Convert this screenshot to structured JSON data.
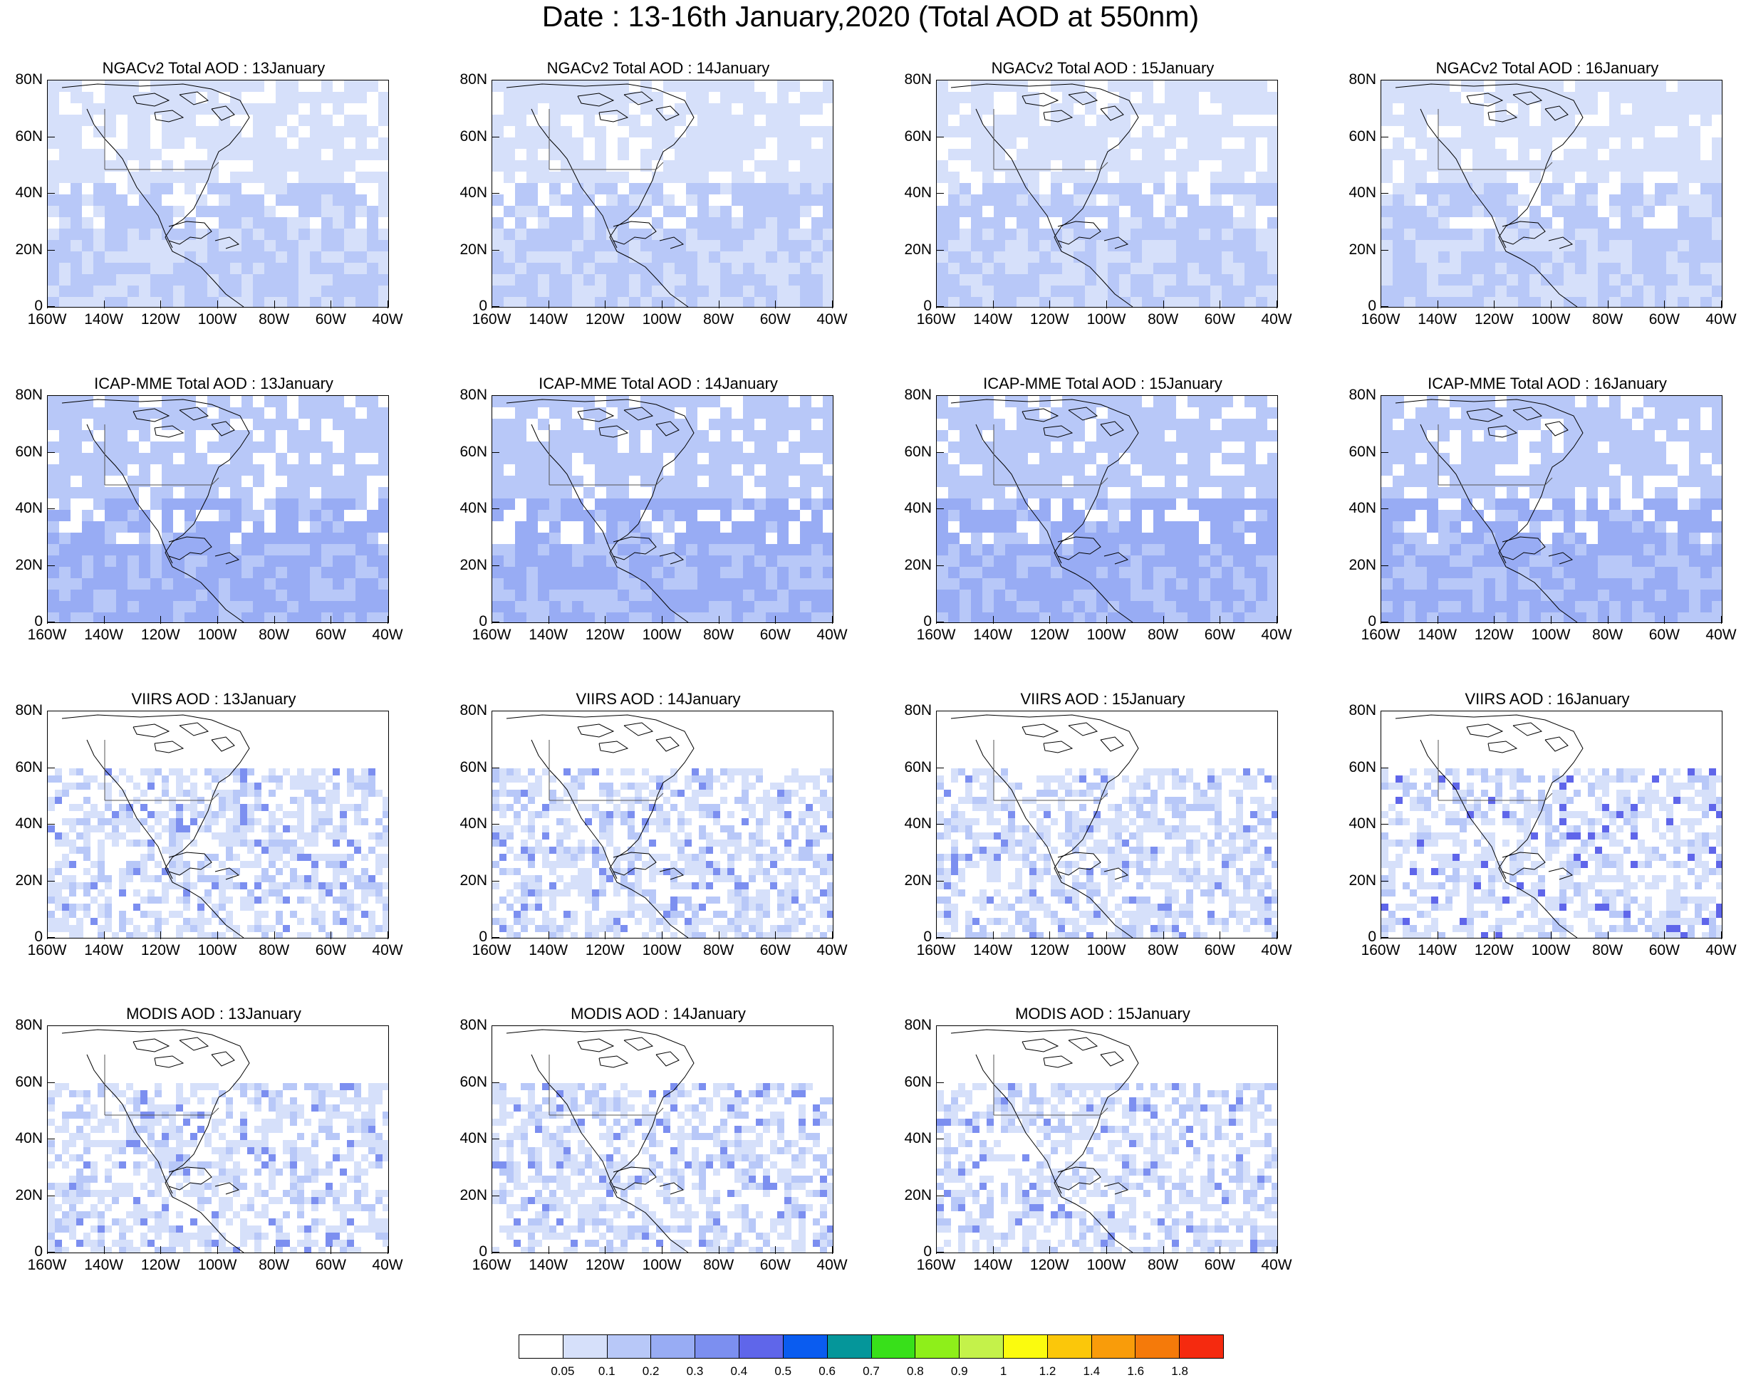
{
  "title": "Date : 13-16th January,2020 (Total AOD at 550nm)",
  "y_ticks": [
    "80N",
    "60N",
    "40N",
    "20N",
    "0"
  ],
  "x_ticks": [
    "160W",
    "140W",
    "120W",
    "100W",
    "80W",
    "60W",
    "40W"
  ],
  "panels": [
    {
      "row": 0,
      "col": 0,
      "title": "NGACv2 Total AOD : 13January",
      "kind": "model",
      "level": 1
    },
    {
      "row": 0,
      "col": 1,
      "title": "NGACv2 Total AOD : 14January",
      "kind": "model",
      "level": 1
    },
    {
      "row": 0,
      "col": 2,
      "title": "NGACv2 Total AOD : 15January",
      "kind": "model",
      "level": 1
    },
    {
      "row": 0,
      "col": 3,
      "title": "NGACv2 Total AOD : 16January",
      "kind": "model",
      "level": 1
    },
    {
      "row": 1,
      "col": 0,
      "title": "ICAP-MME Total AOD : 13January",
      "kind": "model",
      "level": 2
    },
    {
      "row": 1,
      "col": 1,
      "title": "ICAP-MME Total AOD : 14January",
      "kind": "model",
      "level": 2
    },
    {
      "row": 1,
      "col": 2,
      "title": "ICAP-MME Total AOD : 15January",
      "kind": "model",
      "level": 2
    },
    {
      "row": 1,
      "col": 3,
      "title": "ICAP-MME Total AOD : 16January",
      "kind": "model",
      "level": 2
    },
    {
      "row": 2,
      "col": 0,
      "title": "VIIRS AOD : 13January",
      "kind": "obs",
      "level": 1
    },
    {
      "row": 2,
      "col": 1,
      "title": "VIIRS AOD : 14January",
      "kind": "obs",
      "level": 1
    },
    {
      "row": 2,
      "col": 2,
      "title": "VIIRS AOD : 15January",
      "kind": "obs",
      "level": 1
    },
    {
      "row": 2,
      "col": 3,
      "title": "VIIRS AOD : 16January",
      "kind": "obs",
      "level": 2
    },
    {
      "row": 3,
      "col": 0,
      "title": "MODIS AOD : 13January",
      "kind": "obs",
      "level": 1
    },
    {
      "row": 3,
      "col": 1,
      "title": "MODIS AOD : 14January",
      "kind": "obs",
      "level": 1
    },
    {
      "row": 3,
      "col": 2,
      "title": "MODIS AOD : 15January",
      "kind": "obs",
      "level": 1
    }
  ],
  "colorbar": {
    "colors": [
      "#ffffff",
      "#d6e0fa",
      "#b8c8f8",
      "#98acf4",
      "#7c8ff0",
      "#5f66ea",
      "#0a5cf0",
      "#05969a",
      "#38e01a",
      "#8eef1a",
      "#c4f24a",
      "#fbfb0e",
      "#fbc70a",
      "#f99c0a",
      "#f57a0a",
      "#f52a0f"
    ],
    "labels": [
      "0.05",
      "0.1",
      "0.2",
      "0.3",
      "0.4",
      "0.5",
      "0.6",
      "0.7",
      "0.8",
      "0.9",
      "1",
      "1.2",
      "1.4",
      "1.6",
      "1.8"
    ]
  }
}
